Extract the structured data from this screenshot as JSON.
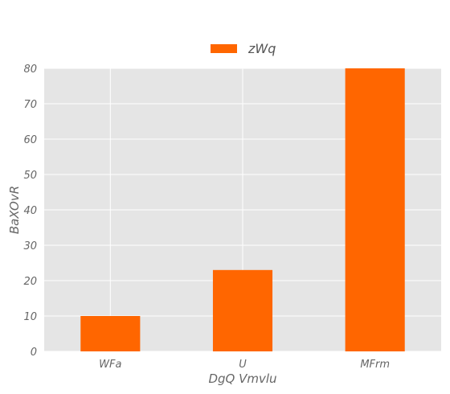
{
  "chart_data": {
    "type": "bar",
    "title": "",
    "xlabel": "DgQ Vmvlu",
    "ylabel": "BaXOvR",
    "categories": [
      "WFa",
      "U",
      "MFrm"
    ],
    "series": [
      {
        "name": "zWq",
        "values": [
          10,
          23,
          80
        ],
        "color": "#ff6600"
      }
    ],
    "ylim": [
      0,
      80
    ],
    "yticks": [
      0,
      10,
      20,
      30,
      40,
      50,
      60,
      70,
      80
    ],
    "grid": true,
    "legend": "top-center",
    "background": "#e5e5e5",
    "grid_color": "#ffffff"
  }
}
